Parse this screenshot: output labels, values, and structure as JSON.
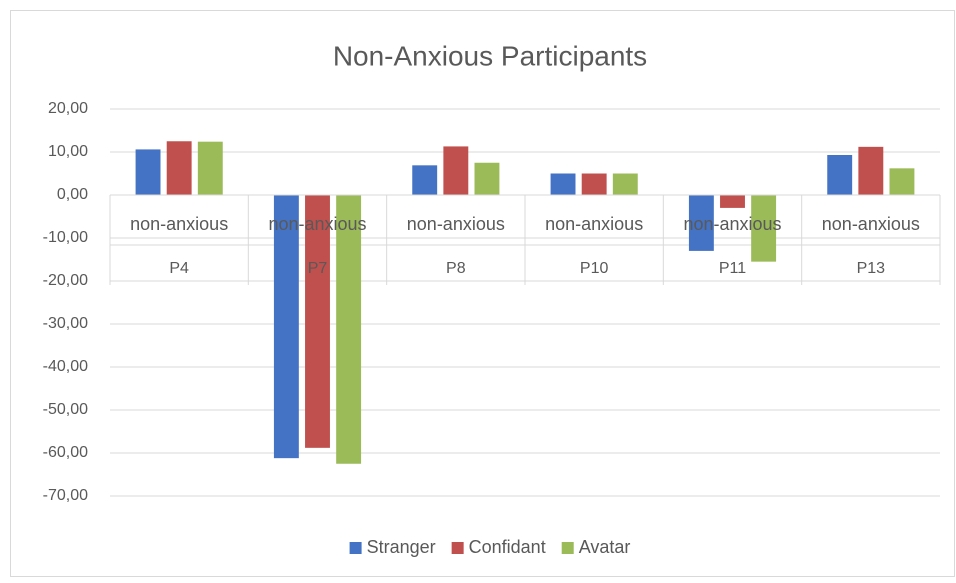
{
  "chart_data": {
    "type": "bar",
    "title": "Non-Anxious Participants",
    "categories": [
      "P4",
      "P7",
      "P8",
      "P10",
      "P11",
      "P13"
    ],
    "category_groups": [
      "non-anxious",
      "non-anxious",
      "non-anxious",
      "non-anxious",
      "non-anxious",
      "non-anxious"
    ],
    "series": [
      {
        "name": "Stranger",
        "color": "#4472c4",
        "values": [
          10.6,
          -61.2,
          6.9,
          5.0,
          -13.0,
          9.3
        ]
      },
      {
        "name": "Confidant",
        "color": "#c0504d",
        "values": [
          12.5,
          -58.8,
          11.3,
          5.0,
          -3.0,
          11.2
        ]
      },
      {
        "name": "Avatar",
        "color": "#9bbb59",
        "values": [
          12.4,
          -62.5,
          7.5,
          5.0,
          -15.5,
          6.2
        ]
      }
    ],
    "ylim": [
      -70,
      20
    ],
    "yticks": [
      {
        "value": 20,
        "label": "20,00"
      },
      {
        "value": 10,
        "label": "10,00"
      },
      {
        "value": 0,
        "label": "0,00"
      },
      {
        "value": -10,
        "label": "-10,00"
      },
      {
        "value": -20,
        "label": "-20,00"
      },
      {
        "value": -30,
        "label": "-30,00"
      },
      {
        "value": -40,
        "label": "-40,00"
      },
      {
        "value": -50,
        "label": "-50,00"
      },
      {
        "value": -60,
        "label": "-60,00"
      },
      {
        "value": -70,
        "label": "-70,00"
      }
    ],
    "grid": true,
    "legend": "bottom"
  }
}
